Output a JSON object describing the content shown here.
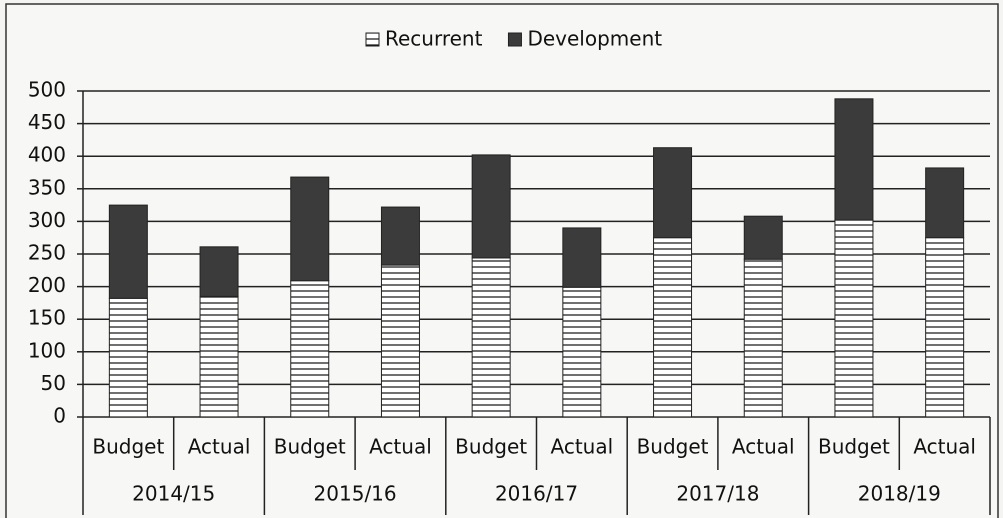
{
  "chart_data": {
    "type": "stacked_bar",
    "categories": [
      "Budget",
      "Actual",
      "Budget",
      "Actual",
      "Budget",
      "Actual",
      "Budget",
      "Actual",
      "Budget",
      "Actual"
    ],
    "groups": [
      "2014/15",
      "2015/16",
      "2016/17",
      "2017/18",
      "2018/19"
    ],
    "series": [
      {
        "name": "Recurrent",
        "color": "#ffffff",
        "hatch": "horizontal",
        "values": [
          182,
          185,
          209,
          233,
          244,
          199,
          275,
          242,
          302,
          275
        ]
      },
      {
        "name": "Development",
        "color": "#3b3b3b",
        "values": [
          143,
          76,
          159,
          89,
          158,
          91,
          138,
          66,
          186,
          107
        ]
      }
    ],
    "ylim": [
      0,
      500
    ],
    "yticks": [
      0,
      50,
      100,
      150,
      200,
      250,
      300,
      350,
      400,
      450,
      500
    ],
    "grid": true,
    "legend": "top"
  }
}
